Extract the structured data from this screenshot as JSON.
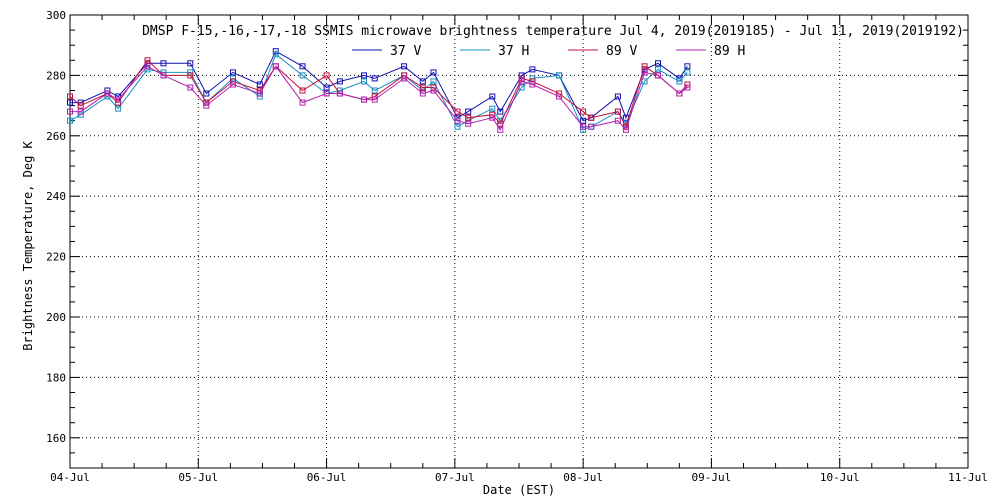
{
  "chart_data": {
    "type": "line",
    "title": "DMSP F-15,-16,-17,-18 SSMIS microwave brightness temperature Jul  4, 2019(2019185) - Jul 11, 2019(2019192)",
    "xlabel": "Date (EST)",
    "ylabel": "Brightness Temperature, Deg K",
    "xlim": [
      "2019-07-04",
      "2019-07-11"
    ],
    "ylim": [
      150,
      300
    ],
    "x_ticks": [
      "04-Jul",
      "05-Jul",
      "06-Jul",
      "07-Jul",
      "08-Jul",
      "09-Jul",
      "10-Jul",
      "11-Jul"
    ],
    "y_ticks": [
      160,
      180,
      200,
      220,
      240,
      260,
      280,
      300
    ],
    "grid": true,
    "legend": "top-center",
    "series": [
      {
        "name": "37 V",
        "color": "#1010b0",
        "x": [
          "2019-07-04T00:00",
          "2019-07-04T02:00",
          "2019-07-04T07:00",
          "2019-07-04T09:00",
          "2019-07-04T14:30",
          "2019-07-04T17:30",
          "2019-07-04T22:30",
          "2019-07-05T01:30",
          "2019-07-05T06:30",
          "2019-07-05T11:30",
          "2019-07-05T14:30",
          "2019-07-05T19:30",
          "2019-07-06T00:00",
          "2019-07-06T02:30",
          "2019-07-06T07:00",
          "2019-07-06T09:00",
          "2019-07-06T14:30",
          "2019-07-06T18:00",
          "2019-07-06T20:00",
          "2019-07-07T00:30",
          "2019-07-07T02:30",
          "2019-07-07T07:00",
          "2019-07-07T08:30",
          "2019-07-07T12:30",
          "2019-07-07T14:30",
          "2019-07-07T19:30",
          "2019-07-08T00:00",
          "2019-07-08T01:30",
          "2019-07-08T06:30",
          "2019-07-08T08:00",
          "2019-07-08T11:30",
          "2019-07-08T14:00",
          "2019-07-08T18:00",
          "2019-07-08T19:30"
        ],
        "y": [
          271,
          271,
          275,
          273,
          284,
          284,
          284,
          274,
          281,
          277,
          288,
          283,
          276,
          278,
          280,
          279,
          283,
          278,
          281,
          266,
          268,
          273,
          268,
          280,
          282,
          280,
          265,
          266,
          273,
          266,
          282,
          284,
          279,
          283
        ]
      },
      {
        "name": "37 H",
        "color": "#1890c0",
        "x": [
          "2019-07-04T00:00",
          "2019-07-04T02:00",
          "2019-07-04T07:00",
          "2019-07-04T09:00",
          "2019-07-04T14:30",
          "2019-07-04T17:30",
          "2019-07-04T22:30",
          "2019-07-05T01:30",
          "2019-07-05T06:30",
          "2019-07-05T11:30",
          "2019-07-05T14:30",
          "2019-07-05T19:30",
          "2019-07-06T00:00",
          "2019-07-06T02:30",
          "2019-07-06T07:00",
          "2019-07-06T09:00",
          "2019-07-06T14:30",
          "2019-07-06T18:00",
          "2019-07-06T20:00",
          "2019-07-07T00:30",
          "2019-07-07T02:30",
          "2019-07-07T07:00",
          "2019-07-07T08:30",
          "2019-07-07T12:30",
          "2019-07-07T14:30",
          "2019-07-07T19:30",
          "2019-07-08T00:00",
          "2019-07-08T01:30",
          "2019-07-08T06:30",
          "2019-07-08T08:00",
          "2019-07-08T11:30",
          "2019-07-08T14:00",
          "2019-07-08T18:00",
          "2019-07-08T19:30"
        ],
        "y": [
          265,
          267,
          273,
          269,
          282,
          281,
          281,
          271,
          279,
          273,
          287,
          280,
          274,
          275,
          278,
          275,
          280,
          275,
          278,
          263,
          265,
          269,
          265,
          276,
          279,
          280,
          262,
          263,
          268,
          264,
          278,
          282,
          278,
          281
        ]
      },
      {
        "name": "89 V",
        "color": "#c0103a",
        "x": [
          "2019-07-04T00:00",
          "2019-07-04T02:00",
          "2019-07-04T07:00",
          "2019-07-04T09:00",
          "2019-07-04T14:30",
          "2019-07-04T17:30",
          "2019-07-04T22:30",
          "2019-07-05T01:30",
          "2019-07-05T06:30",
          "2019-07-05T11:30",
          "2019-07-05T14:30",
          "2019-07-05T19:30",
          "2019-07-06T00:00",
          "2019-07-06T02:30",
          "2019-07-06T07:00",
          "2019-07-06T09:00",
          "2019-07-06T14:30",
          "2019-07-06T18:00",
          "2019-07-06T20:00",
          "2019-07-07T00:30",
          "2019-07-07T02:30",
          "2019-07-07T07:00",
          "2019-07-07T08:30",
          "2019-07-07T12:30",
          "2019-07-07T14:30",
          "2019-07-07T19:30",
          "2019-07-08T00:00",
          "2019-07-08T01:30",
          "2019-07-08T06:30",
          "2019-07-08T08:00",
          "2019-07-08T11:30",
          "2019-07-08T14:00",
          "2019-07-08T18:00",
          "2019-07-08T19:30"
        ],
        "y": [
          273,
          270,
          274,
          271,
          285,
          280,
          280,
          271,
          278,
          275,
          283,
          275,
          280,
          274,
          272,
          273,
          280,
          276,
          276,
          268,
          266,
          267,
          264,
          279,
          278,
          274,
          268,
          266,
          268,
          263,
          283,
          280,
          274,
          277
        ]
      },
      {
        "name": "89 H",
        "color": "#b020b0",
        "x": [
          "2019-07-04T00:00",
          "2019-07-04T02:00",
          "2019-07-04T07:00",
          "2019-07-04T09:00",
          "2019-07-04T14:30",
          "2019-07-04T17:30",
          "2019-07-04T22:30",
          "2019-07-05T01:30",
          "2019-07-05T06:30",
          "2019-07-05T11:30",
          "2019-07-05T14:30",
          "2019-07-05T19:30",
          "2019-07-06T00:00",
          "2019-07-06T02:30",
          "2019-07-06T07:00",
          "2019-07-06T09:00",
          "2019-07-06T14:30",
          "2019-07-06T18:00",
          "2019-07-06T20:00",
          "2019-07-07T00:30",
          "2019-07-07T02:30",
          "2019-07-07T07:00",
          "2019-07-07T08:30",
          "2019-07-07T12:30",
          "2019-07-07T14:30",
          "2019-07-07T19:30",
          "2019-07-08T00:00",
          "2019-07-08T01:30",
          "2019-07-08T06:30",
          "2019-07-08T08:00",
          "2019-07-08T11:30",
          "2019-07-08T14:00",
          "2019-07-08T18:00",
          "2019-07-08T19:30"
        ],
        "y": [
          268,
          268,
          274,
          272,
          283,
          280,
          276,
          270,
          277,
          274,
          283,
          271,
          274,
          274,
          272,
          272,
          279,
          274,
          275,
          265,
          264,
          266,
          262,
          278,
          277,
          273,
          263,
          263,
          265,
          262,
          281,
          280,
          274,
          276
        ]
      }
    ]
  }
}
